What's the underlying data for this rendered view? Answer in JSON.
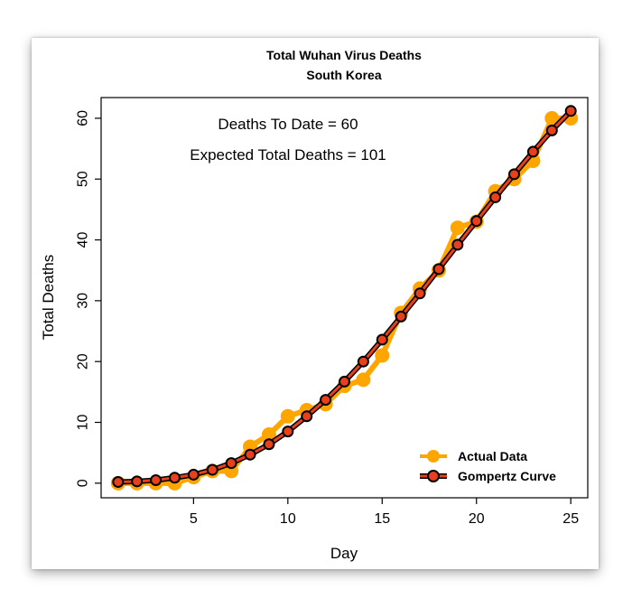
{
  "chart_data": {
    "type": "line",
    "title": "Total Wuhan Virus Deaths",
    "subtitle": "South Korea",
    "xlabel": "Day",
    "ylabel": "Total Deaths",
    "xlim": [
      0.1,
      25.9
    ],
    "ylim": [
      -2.4,
      63.4
    ],
    "x_ticks": [
      5,
      10,
      15,
      20,
      25
    ],
    "y_ticks": [
      0,
      10,
      20,
      30,
      40,
      50,
      60
    ],
    "annotations": [
      "Deaths To Date = 60",
      "Expected Total Deaths = 101"
    ],
    "legend_position": "bottom-right",
    "x": [
      1,
      2,
      3,
      4,
      5,
      6,
      7,
      8,
      9,
      10,
      11,
      12,
      13,
      14,
      15,
      16,
      17,
      18,
      19,
      20,
      21,
      22,
      23,
      24,
      25
    ],
    "series": [
      {
        "name": "Actual Data",
        "color": "#FFA500",
        "values": [
          0,
          0,
          0,
          0,
          1,
          2,
          2,
          6,
          8,
          11,
          12,
          13,
          16,
          17,
          21,
          28,
          32,
          35,
          42,
          43,
          48,
          50,
          53,
          60,
          60
        ]
      },
      {
        "name": "Gompertz Curve",
        "color": "#E8401C",
        "values": [
          0.2,
          0.3,
          0.5,
          0.9,
          1.4,
          2.2,
          3.3,
          4.7,
          6.4,
          8.5,
          11.0,
          13.7,
          16.7,
          20.0,
          23.6,
          27.4,
          31.2,
          35.2,
          39.2,
          43.1,
          47.0,
          50.8,
          54.5,
          58.0,
          61.2
        ]
      }
    ]
  }
}
